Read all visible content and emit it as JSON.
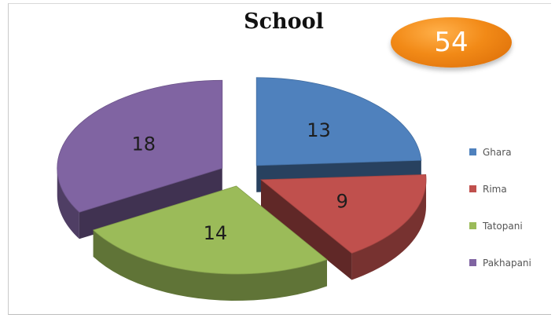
{
  "badge": {
    "value": "54"
  },
  "chart_data": {
    "type": "pie",
    "title": "School",
    "categories": [
      "Ghara",
      "Rima",
      "Tatopani",
      "Pakhapani"
    ],
    "values": [
      13,
      9,
      14,
      18
    ],
    "exploded": true,
    "three_d": true,
    "legend_position": "right",
    "colors": {
      "Ghara": "#4f81bd",
      "Rima": "#c0504d",
      "Tatopani": "#9bbb59",
      "Pakhapani": "#8064a2"
    }
  },
  "legend": [
    {
      "label": "Ghara",
      "color": "#4f81bd"
    },
    {
      "label": "Rima",
      "color": "#c0504d"
    },
    {
      "label": "Tatopani",
      "color": "#9bbb59"
    },
    {
      "label": "Pakhapani",
      "color": "#8064a2"
    }
  ]
}
